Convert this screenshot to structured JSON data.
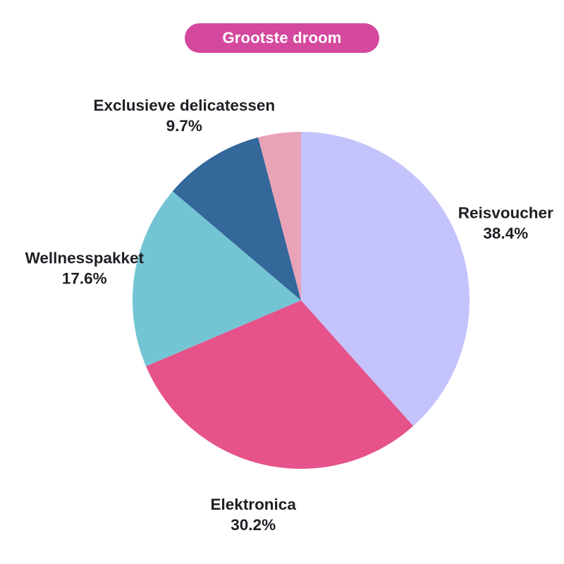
{
  "header": {
    "badge_label": "Grootste droom",
    "badge_color": "#d4489e",
    "badge_text_color": "#ffffff"
  },
  "chart_data": {
    "type": "pie",
    "title": "Grootste droom",
    "slices": [
      {
        "label": "Reisvoucher",
        "pct_label": "38.4%",
        "value": 38.4,
        "color": "#c5c3fc"
      },
      {
        "label": "Elektronica",
        "pct_label": "30.2%",
        "value": 30.2,
        "color": "#e5538a"
      },
      {
        "label": "Wellnesspakket",
        "pct_label": "17.6%",
        "value": 17.6,
        "color": "#74c5d4"
      },
      {
        "label": "Exclusieve delicatessen",
        "pct_label": "9.7%",
        "value": 9.7,
        "color": "#34679a"
      },
      {
        "label": "",
        "pct_label": "",
        "value": 4.1,
        "color": "#e9a3b7"
      }
    ],
    "start_angle_deg": 90,
    "direction": "clockwise",
    "label_distance": 1.3,
    "label_color": "#1e1e24",
    "background": "#ffffff",
    "legend": "none"
  }
}
